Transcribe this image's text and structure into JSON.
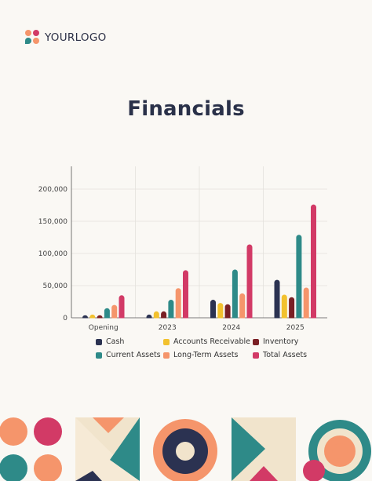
{
  "logo": {
    "text": "YOURLOGO"
  },
  "title": "Financials",
  "colors": {
    "cash": "#2b3251",
    "accounts_receivable": "#f2c12e",
    "inventory": "#7a1f24",
    "current_assets": "#2e8a88",
    "long_term_assets": "#f5956b",
    "total_assets": "#d23a66",
    "text_dark": "#2a3149",
    "background": "#faf8f4"
  },
  "chart_data": {
    "type": "bar",
    "title": "",
    "xlabel": "",
    "ylabel": "",
    "categories": [
      "Opening",
      "2023",
      "2024",
      "2025"
    ],
    "ylim": [
      0,
      200000
    ],
    "yticks": [
      "0",
      "50,000",
      "100,000",
      "150,000",
      "200,000"
    ],
    "ytick_values": [
      0,
      50000,
      100000,
      150000,
      200000
    ],
    "grid": true,
    "legend_position": "bottom",
    "series": [
      {
        "name": "Cash",
        "color": "#2b3251",
        "values": [
          4000,
          5000,
          28000,
          59000
        ]
      },
      {
        "name": "Accounts Receivable",
        "color": "#f2c12e",
        "values": [
          5000,
          10000,
          23000,
          36000
        ]
      },
      {
        "name": "Inventory",
        "color": "#7a1f24",
        "values": [
          4000,
          10000,
          21000,
          32000
        ]
      },
      {
        "name": "Current Assets",
        "color": "#2e8a88",
        "values": [
          15000,
          28000,
          75000,
          129000
        ]
      },
      {
        "name": "Long-Term Assets",
        "color": "#f5956b",
        "values": [
          20000,
          46000,
          38000,
          47000
        ]
      },
      {
        "name": "Total Assets",
        "color": "#d23a66",
        "values": [
          35000,
          74000,
          114000,
          176000
        ]
      }
    ]
  }
}
